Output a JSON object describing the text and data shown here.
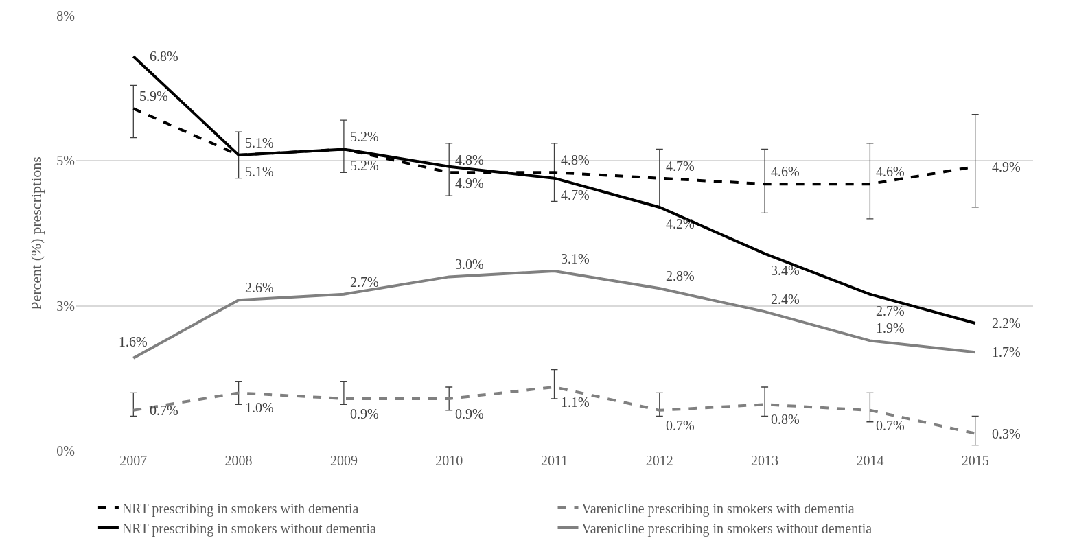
{
  "chart_data": {
    "type": "line",
    "ylabel": "Percent (%) prescriptions",
    "categories": [
      "2007",
      "2008",
      "2009",
      "2010",
      "2011",
      "2012",
      "2013",
      "2014",
      "2015"
    ],
    "ylim": [
      0,
      7.5
    ],
    "yticks": [
      {
        "value": 0,
        "label": "0%"
      },
      {
        "value": 2.5,
        "label": "3%"
      },
      {
        "value": 5,
        "label": "5%"
      },
      {
        "value": 7.5,
        "label": "8%"
      }
    ],
    "grid": "y",
    "legend": "bottom",
    "marker": "none",
    "series": [
      {
        "name": "NRT prescribing in smokers with dementia",
        "color": "#000000",
        "line_style": "dashed",
        "values": [
          5.9,
          5.1,
          5.2,
          4.8,
          4.8,
          4.7,
          4.6,
          4.6,
          4.9
        ],
        "value_labels": [
          "5.9%",
          "5.1%",
          "5.2%",
          "4.8%",
          "4.8%",
          "4.7%",
          "4.6%",
          "4.6%",
          "4.9%"
        ],
        "errors": [
          [
            5.4,
            6.3
          ],
          [
            4.7,
            5.5
          ],
          [
            4.8,
            5.7
          ],
          [
            4.4,
            5.3
          ],
          [
            4.3,
            5.3
          ],
          [
            4.2,
            5.2
          ],
          [
            4.1,
            5.2
          ],
          [
            4.0,
            5.3
          ],
          [
            4.2,
            5.8
          ]
        ]
      },
      {
        "name": "Varenicline prescribing in smokers with dementia",
        "color": "#808080",
        "line_style": "dashed",
        "values": [
          0.7,
          1.0,
          0.9,
          0.9,
          1.1,
          0.7,
          0.8,
          0.7,
          0.3
        ],
        "value_labels": [
          "0.7%",
          "1.0%",
          "0.9%",
          "0.9%",
          "1.1%",
          "0.7%",
          "0.8%",
          "0.7%",
          "0.3%"
        ],
        "errors": [
          [
            0.6,
            1.0
          ],
          [
            0.8,
            1.2
          ],
          [
            0.8,
            1.2
          ],
          [
            0.7,
            1.1
          ],
          [
            0.9,
            1.4
          ],
          [
            0.6,
            1.0
          ],
          [
            0.6,
            1.1
          ],
          [
            0.5,
            1.0
          ],
          [
            0.1,
            0.6
          ]
        ]
      },
      {
        "name": "NRT prescribing in smokers without dementia",
        "color": "#000000",
        "line_style": "solid",
        "values": [
          6.8,
          5.1,
          5.2,
          4.9,
          4.7,
          4.2,
          3.4,
          2.7,
          2.2
        ],
        "value_labels": [
          "6.8%",
          "5.1%",
          "5.2%",
          "4.9%",
          "4.7%",
          "4.2%",
          "3.4%",
          "2.7%",
          "2.2%"
        ]
      },
      {
        "name": "Varenicline prescribing in smokers without dementia",
        "color": "#808080",
        "line_style": "solid",
        "values": [
          1.6,
          2.6,
          2.7,
          3.0,
          3.1,
          2.8,
          2.4,
          1.9,
          1.7
        ],
        "value_labels": [
          "1.6%",
          "2.6%",
          "2.7%",
          "3.0%",
          "3.1%",
          "2.8%",
          "2.4%",
          "1.9%",
          "1.7%"
        ]
      }
    ]
  }
}
